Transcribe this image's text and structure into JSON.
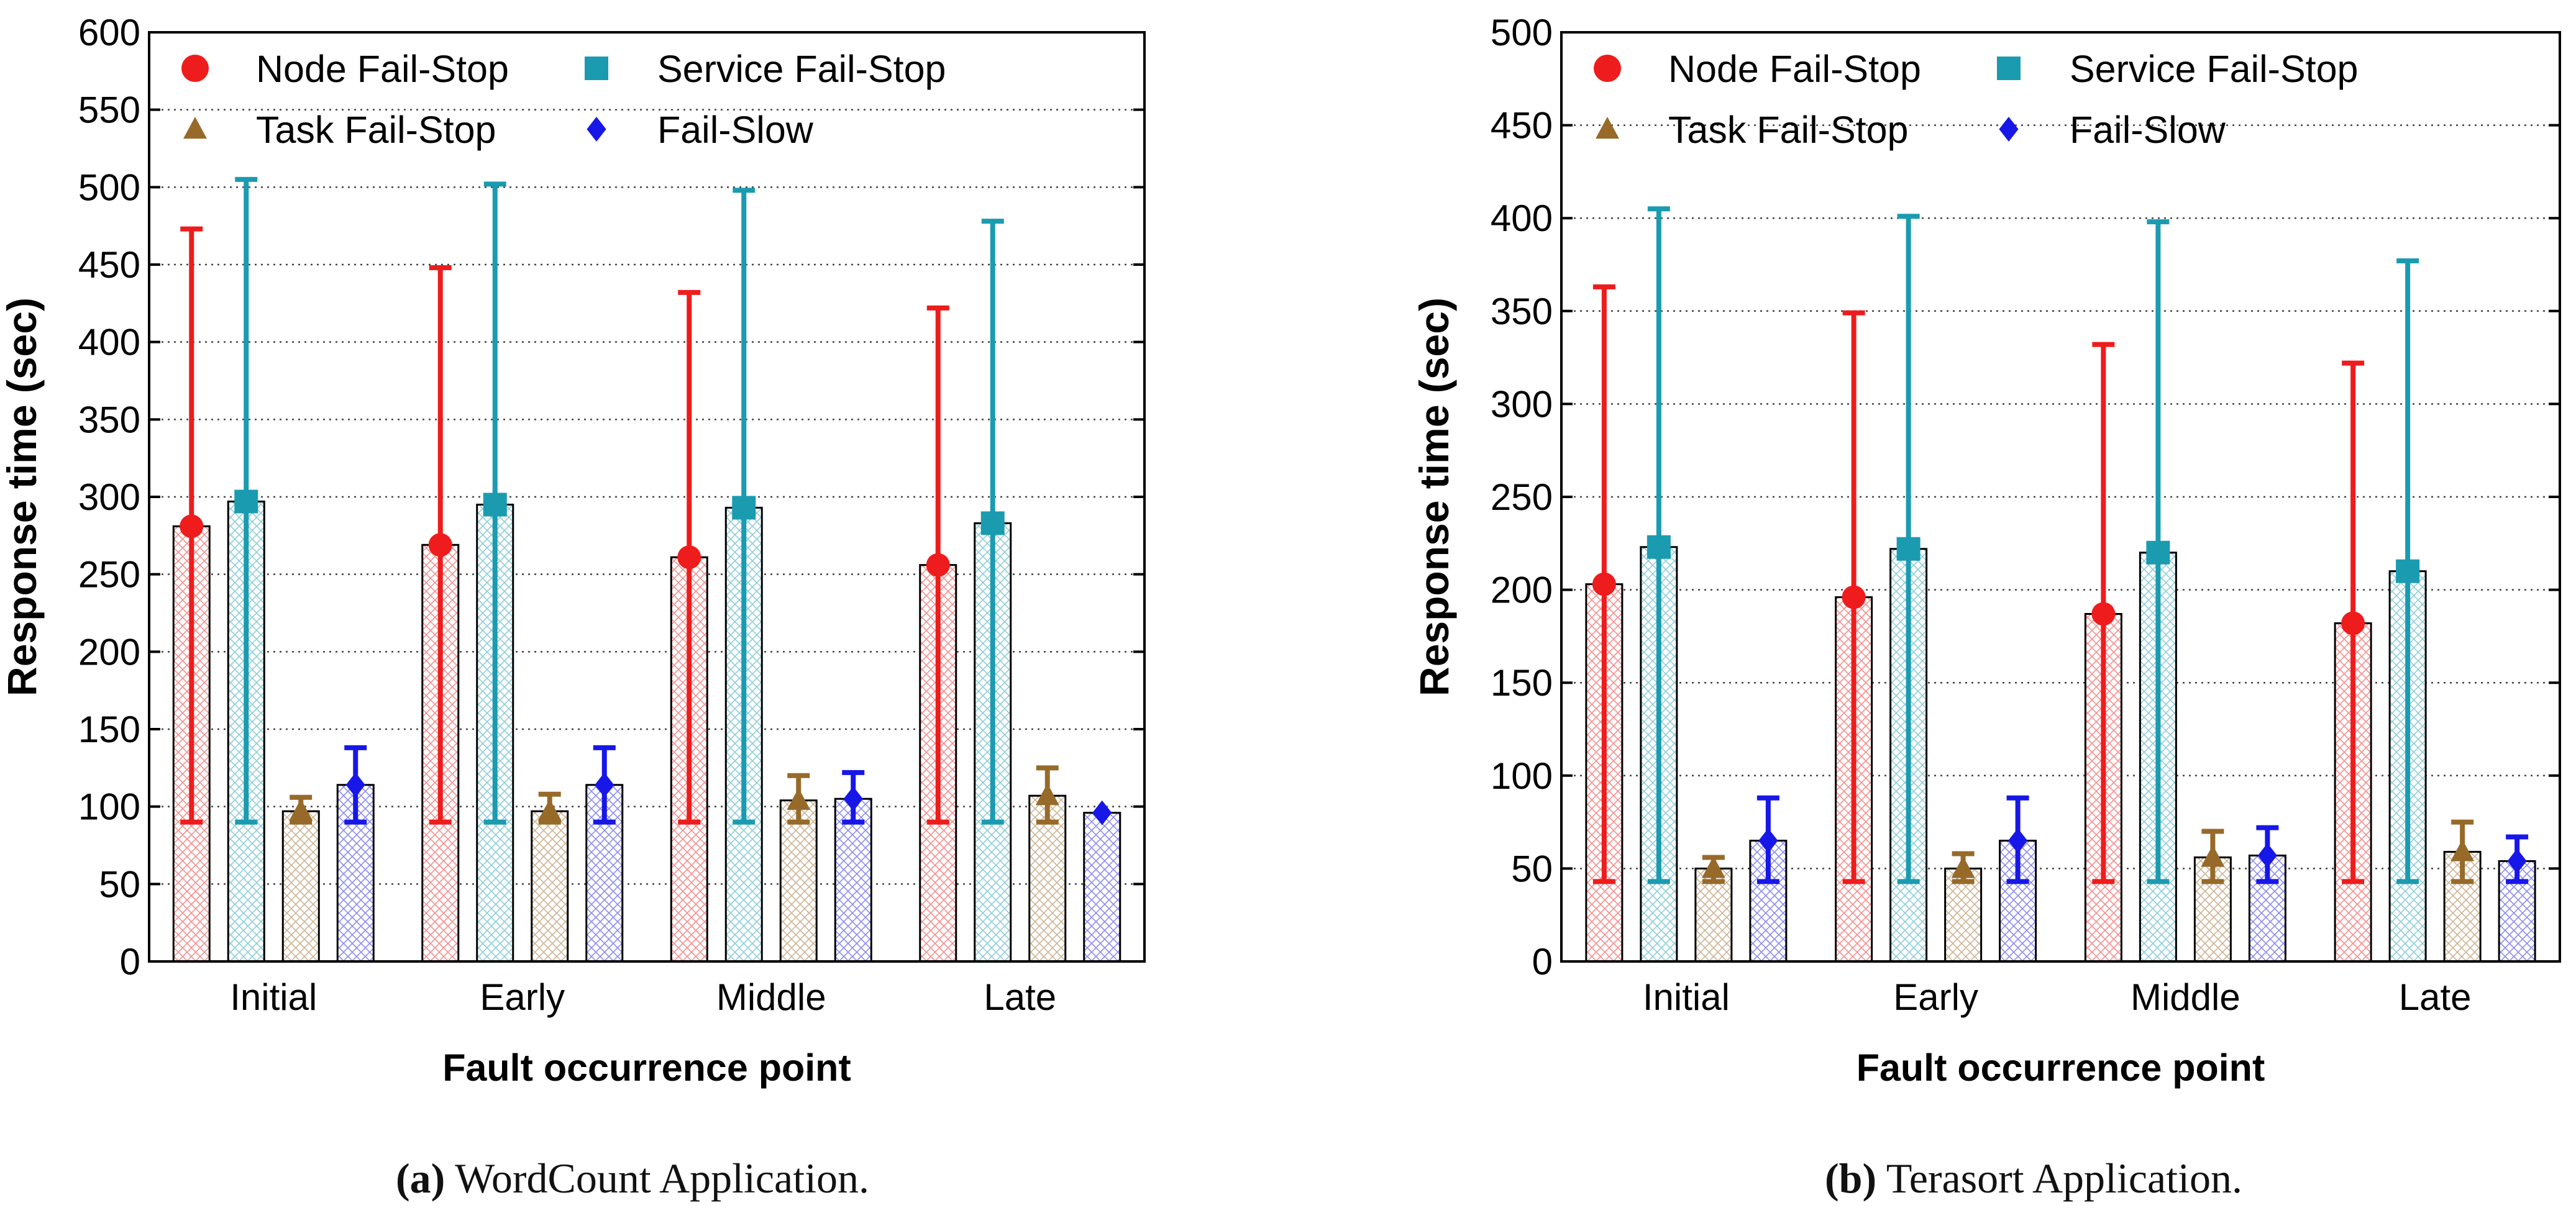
{
  "colors": {
    "node": "#ee1c1c",
    "service": "#1b9bb0",
    "task": "#976a2a",
    "slow": "#1717e8",
    "grid": "#444444",
    "axis": "#000000"
  },
  "legend_labels": [
    "Node Fail-Stop",
    "Service Fail-Stop",
    "Task Fail-Stop",
    "Fail-Slow"
  ],
  "chart_data": [
    {
      "type": "bar",
      "id": "wordcount",
      "caption_label": "(a)",
      "caption_text": "WordCount Application.",
      "xlabel": "Fault occurrence point",
      "ylabel": "Response time (sec)",
      "ylim": [
        0,
        600
      ],
      "yticks": [
        0,
        50,
        100,
        150,
        200,
        250,
        300,
        350,
        400,
        450,
        500,
        550,
        600
      ],
      "grid": true,
      "legend_position": "top-left",
      "categories": [
        "Initial",
        "Early",
        "Middle",
        "Late"
      ],
      "series": [
        {
          "name": "Node Fail-Stop",
          "color_key": "node",
          "marker": "circle",
          "values": [
            281,
            269,
            261,
            256
          ],
          "err_low": [
            90,
            90,
            90,
            90
          ],
          "err_high": [
            473,
            448,
            432,
            422
          ]
        },
        {
          "name": "Service Fail-Stop",
          "color_key": "service",
          "marker": "square",
          "values": [
            297,
            295,
            293,
            283
          ],
          "err_low": [
            90,
            90,
            90,
            90
          ],
          "err_high": [
            505,
            502,
            498,
            478
          ]
        },
        {
          "name": "Task Fail-Stop",
          "color_key": "task",
          "marker": "triangle",
          "values": [
            97,
            97,
            104,
            107
          ],
          "err_low": [
            90,
            90,
            90,
            90
          ],
          "err_high": [
            106,
            108,
            120,
            125
          ]
        },
        {
          "name": "Fail-Slow",
          "color_key": "slow",
          "marker": "diamond",
          "values": [
            114,
            114,
            105,
            96
          ],
          "err_low": [
            90,
            90,
            90,
            96
          ],
          "err_high": [
            138,
            138,
            122,
            96
          ]
        }
      ]
    },
    {
      "type": "bar",
      "id": "terasort",
      "caption_label": "(b)",
      "caption_text": "Terasort Application.",
      "xlabel": "Fault occurrence point",
      "ylabel": "Response time (sec)",
      "ylim": [
        0,
        500
      ],
      "yticks": [
        0,
        50,
        100,
        150,
        200,
        250,
        300,
        350,
        400,
        450,
        500
      ],
      "grid": true,
      "legend_position": "top-left",
      "categories": [
        "Initial",
        "Early",
        "Middle",
        "Late"
      ],
      "series": [
        {
          "name": "Node Fail-Stop",
          "color_key": "node",
          "marker": "circle",
          "values": [
            203,
            196,
            187,
            182
          ],
          "err_low": [
            43,
            43,
            43,
            43
          ],
          "err_high": [
            363,
            349,
            332,
            322
          ]
        },
        {
          "name": "Service Fail-Stop",
          "color_key": "service",
          "marker": "square",
          "values": [
            223,
            222,
            220,
            210
          ],
          "err_low": [
            43,
            43,
            43,
            43
          ],
          "err_high": [
            405,
            401,
            398,
            377
          ]
        },
        {
          "name": "Task Fail-Stop",
          "color_key": "task",
          "marker": "triangle",
          "values": [
            50,
            50,
            56,
            59
          ],
          "err_low": [
            43,
            43,
            43,
            43
          ],
          "err_high": [
            56,
            58,
            70,
            75
          ]
        },
        {
          "name": "Fail-Slow",
          "color_key": "slow",
          "marker": "diamond",
          "values": [
            65,
            65,
            57,
            54
          ],
          "err_low": [
            43,
            43,
            43,
            43
          ],
          "err_high": [
            88,
            88,
            72,
            67
          ]
        }
      ]
    }
  ]
}
